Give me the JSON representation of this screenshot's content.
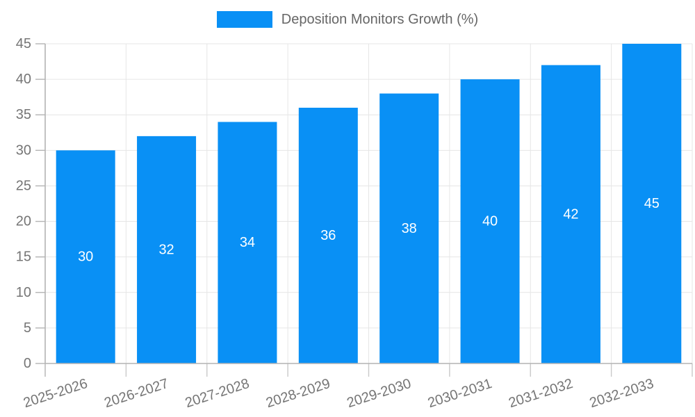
{
  "chart_data": {
    "type": "bar",
    "title": "",
    "series_name": "Deposition Monitors Growth (%)",
    "categories": [
      "2025-2026",
      "2026-2027",
      "2027-2028",
      "2028-2029",
      "2029-2030",
      "2030-2031",
      "2031-2032",
      "2032-2033"
    ],
    "values": [
      30,
      32,
      34,
      36,
      38,
      40,
      42,
      45
    ],
    "xlabel": "",
    "ylabel": "",
    "ylim": [
      0,
      45
    ],
    "ytick_step": 5,
    "grid": true,
    "legend_position": "top",
    "value_labels": "inside-center",
    "xtick_rotation_deg": -18
  },
  "colors": {
    "bar": "#0990f5",
    "grid": "#e6e6e6",
    "axis": "#b3b3b3",
    "tick_label": "#757575",
    "legend_text": "#666666",
    "value_label": "#ffffff",
    "background": "#ffffff"
  }
}
